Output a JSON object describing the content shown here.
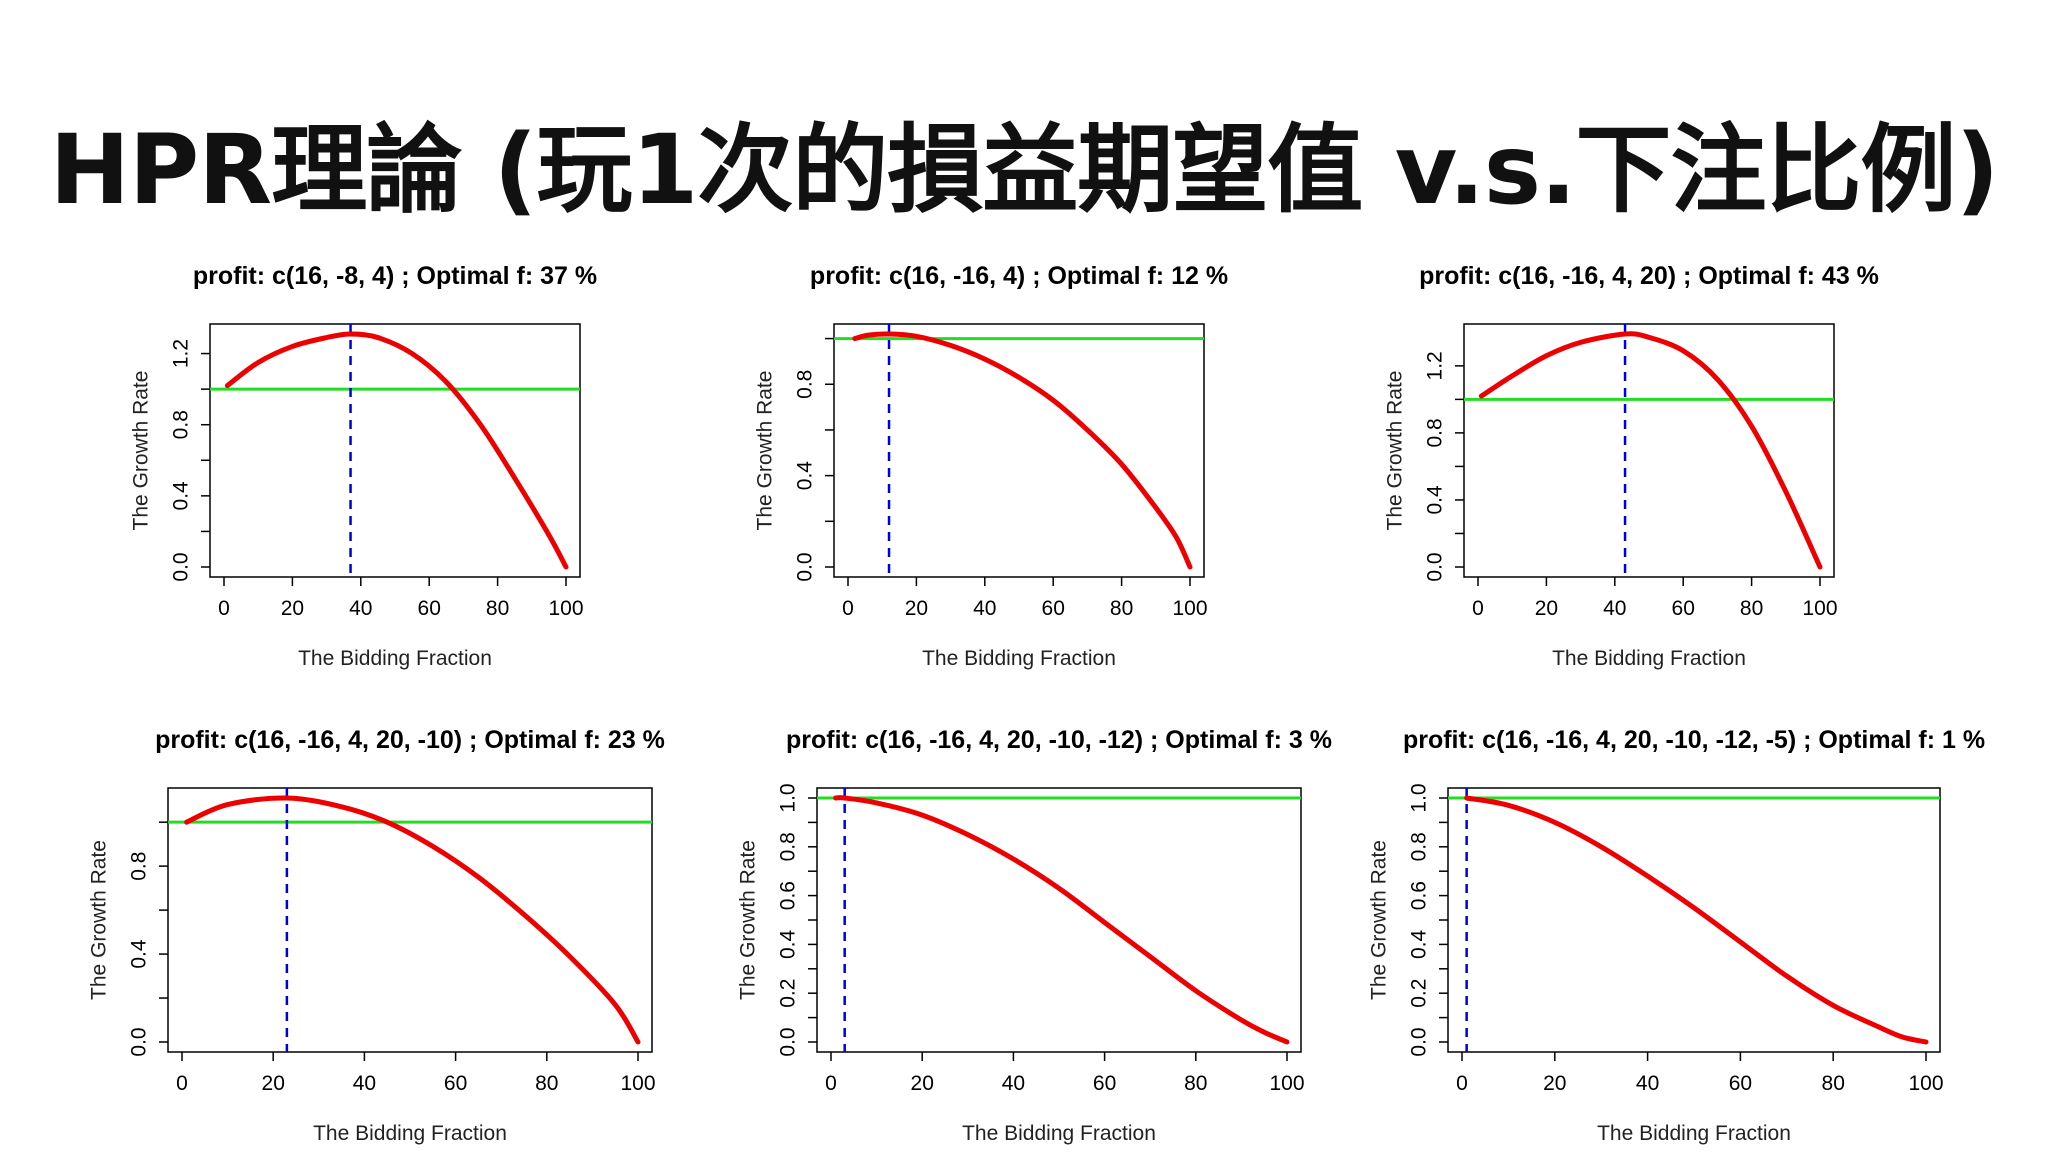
{
  "slide": {
    "title": "HPR理論 (玩1次的損益期望值 v.s.下注比例)"
  },
  "colors": {
    "curve": "#ee0000",
    "reference_line": "#22dd22",
    "optimal_line": "#0000dd",
    "axis": "#000000"
  },
  "chart_data": [
    {
      "type": "line",
      "title": "profit: c(16, -8, 4) ; Optimal f: 37 %",
      "xlabel": "The Bidding Fraction",
      "ylabel": "The Growth Rate",
      "xlim": [
        0,
        100
      ],
      "ylim": [
        0,
        1.31
      ],
      "xticks": [
        "0",
        "20",
        "40",
        "60",
        "80",
        "100"
      ],
      "yticks": [
        "0.0",
        "0.4",
        "0.8",
        "1.2"
      ],
      "reference_y": 1.0,
      "optimal_x": 37,
      "series": [
        {
          "x": [
            1,
            10,
            20,
            30,
            37,
            45,
            55,
            65,
            75,
            85,
            95,
            100
          ],
          "y": [
            1.02,
            1.15,
            1.24,
            1.29,
            1.31,
            1.29,
            1.2,
            1.04,
            0.8,
            0.5,
            0.18,
            0.0
          ]
        }
      ]
    },
    {
      "type": "line",
      "title": "profit: c(16, -16, 4) ; Optimal f: 12 %",
      "xlabel": "The Bidding Fraction",
      "ylabel": "The Growth Rate",
      "xlim": [
        0,
        100
      ],
      "ylim": [
        0,
        1.02
      ],
      "xticks": [
        "0",
        "20",
        "40",
        "60",
        "80",
        "100"
      ],
      "yticks": [
        "0.0",
        "0.4",
        "0.8"
      ],
      "reference_y": 1.0,
      "optimal_x": 12,
      "series": [
        {
          "x": [
            2,
            6,
            12,
            20,
            30,
            40,
            50,
            60,
            70,
            80,
            90,
            96,
            100
          ],
          "y": [
            1.0,
            1.015,
            1.02,
            1.01,
            0.97,
            0.91,
            0.83,
            0.73,
            0.6,
            0.45,
            0.26,
            0.13,
            0.0
          ]
        }
      ]
    },
    {
      "type": "line",
      "title": "profit: c(16, -16, 4, 20) ; Optimal f: 43 %",
      "xlabel": "The Bidding Fraction",
      "ylabel": "The Growth Rate",
      "xlim": [
        0,
        100
      ],
      "ylim": [
        0,
        1.39
      ],
      "xticks": [
        "0",
        "20",
        "40",
        "60",
        "80",
        "100"
      ],
      "yticks": [
        "0.0",
        "0.4",
        "0.8",
        "1.2"
      ],
      "reference_y": 1.0,
      "optimal_x": 43,
      "series": [
        {
          "x": [
            1,
            10,
            20,
            30,
            43,
            50,
            60,
            70,
            80,
            90,
            100
          ],
          "y": [
            1.02,
            1.14,
            1.26,
            1.34,
            1.39,
            1.37,
            1.29,
            1.12,
            0.84,
            0.45,
            0.0
          ]
        }
      ]
    },
    {
      "type": "line",
      "title": "profit: c(16, -16, 4, 20, -10) ; Optimal f: 23 %",
      "xlabel": "The Bidding Fraction",
      "ylabel": "The Growth Rate",
      "xlim": [
        0,
        100
      ],
      "ylim": [
        0,
        1.11
      ],
      "xticks": [
        "0",
        "20",
        "40",
        "60",
        "80",
        "100"
      ],
      "yticks": [
        "0.0",
        "0.4",
        "0.8"
      ],
      "reference_y": 1.0,
      "optimal_x": 23,
      "series": [
        {
          "x": [
            1,
            10,
            23,
            35,
            45,
            55,
            65,
            75,
            85,
            95,
            100
          ],
          "y": [
            1.0,
            1.08,
            1.11,
            1.07,
            1.0,
            0.89,
            0.75,
            0.58,
            0.39,
            0.17,
            0.0
          ]
        }
      ]
    },
    {
      "type": "line",
      "title": "profit: c(16, -16, 4, 20, -10, -12) ; Optimal f: 3 %",
      "xlabel": "The Bidding Fraction",
      "ylabel": "The Growth Rate",
      "xlim": [
        0,
        100
      ],
      "ylim": [
        0,
        1.0
      ],
      "xticks": [
        "0",
        "20",
        "40",
        "60",
        "80",
        "100"
      ],
      "yticks": [
        "0.0",
        "0.2",
        "0.4",
        "0.6",
        "0.8",
        "1.0"
      ],
      "reference_y": 1.0,
      "optimal_x": 3,
      "series": [
        {
          "x": [
            1,
            3,
            10,
            20,
            30,
            40,
            50,
            60,
            70,
            80,
            90,
            95,
            100
          ],
          "y": [
            1.0,
            1.0,
            0.98,
            0.93,
            0.85,
            0.75,
            0.63,
            0.49,
            0.35,
            0.21,
            0.09,
            0.04,
            0.0
          ]
        }
      ]
    },
    {
      "type": "line",
      "title": "profit: c(16, -16, 4, 20, -10, -12, -5) ; Optimal f: 1 %",
      "xlabel": "The Bidding Fraction",
      "ylabel": "The Growth Rate",
      "xlim": [
        0,
        100
      ],
      "ylim": [
        0,
        1.0
      ],
      "xticks": [
        "0",
        "20",
        "40",
        "60",
        "80",
        "100"
      ],
      "yticks": [
        "0.0",
        "0.2",
        "0.4",
        "0.6",
        "0.8",
        "1.0"
      ],
      "reference_y": 1.0,
      "optimal_x": 1,
      "series": [
        {
          "x": [
            1,
            10,
            20,
            30,
            40,
            50,
            60,
            70,
            80,
            90,
            95,
            100
          ],
          "y": [
            1.0,
            0.97,
            0.9,
            0.8,
            0.68,
            0.55,
            0.41,
            0.27,
            0.15,
            0.06,
            0.02,
            0.0
          ]
        }
      ]
    }
  ]
}
